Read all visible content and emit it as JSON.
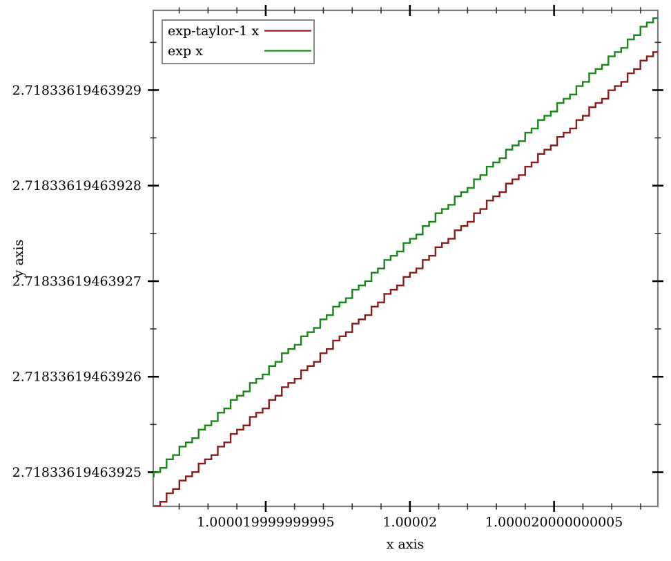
{
  "chart_data": {
    "type": "line",
    "title": "",
    "xlabel": "x axis",
    "ylabel": "y axis",
    "grid": false,
    "legend_position": "top-left",
    "x_center_value": "1.00002",
    "y_center_value": "2.71833619463927",
    "offset_unit": 1e-15,
    "x_range_offsets": [
      -8.9,
      8.6
    ],
    "y_range_offsets": [
      -23.58,
      28.35
    ],
    "x_major_ticks": [
      {
        "offset": -5,
        "label": "1.000019999999995"
      },
      {
        "offset": 0,
        "label": "1.00002"
      },
      {
        "offset": 5,
        "label": "1.000020000000005"
      }
    ],
    "x_minor_tick_offsets": [
      -8,
      -7,
      -6,
      -4,
      -3,
      -2,
      -1,
      1,
      2,
      3,
      4,
      6,
      7,
      8
    ],
    "y_major_ticks": [
      {
        "offset": 20,
        "label": "2.71833619463929"
      },
      {
        "offset": 10,
        "label": "2.71833619463928"
      },
      {
        "offset": 0,
        "label": "2.71833619463927"
      },
      {
        "offset": -10,
        "label": "2.71833619463926"
      },
      {
        "offset": -20,
        "label": "2.71833619463925"
      }
    ],
    "y_minor_tick_offsets": [
      25,
      15,
      5,
      -5,
      -15
    ],
    "quantization": {
      "x_ulp": 0.2220446049250313,
      "y_ulp": 0.4440892098500626
    },
    "series": [
      {
        "name": "exp-taylor-1 x",
        "color": "#8b1a1a",
        "intercept_offset": 0.9,
        "slope": 2.75,
        "style": "float-staircase"
      },
      {
        "name": "exp x",
        "color": "#188718",
        "intercept_offset": 4.46,
        "slope": 2.75,
        "style": "float-staircase"
      }
    ],
    "frame_color": "#7d7d7d",
    "tick_color": "#000000"
  }
}
